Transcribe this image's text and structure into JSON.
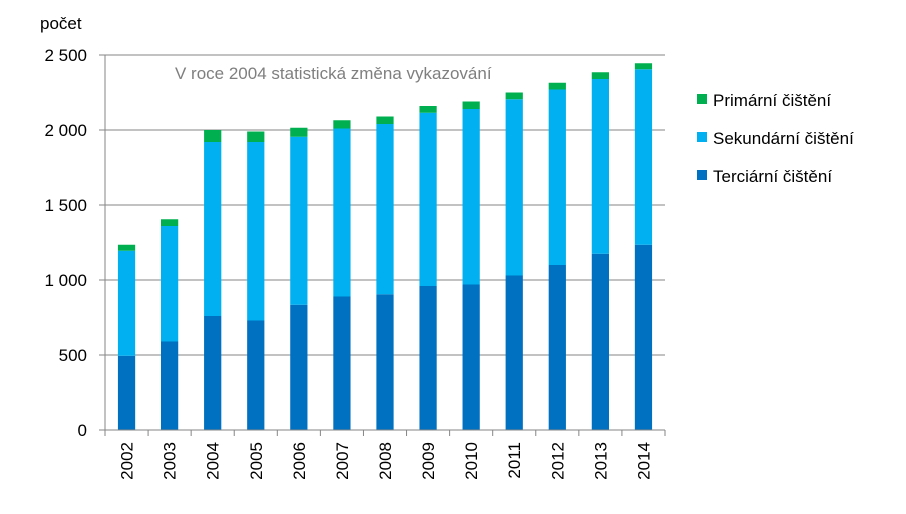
{
  "chart_data": {
    "type": "bar",
    "stacked": true,
    "title": "",
    "ylabel": "počet",
    "xlabel": "",
    "annotation": "V roce 2004 statistická změna vykazování",
    "categories": [
      "2002",
      "2003",
      "2004",
      "2005",
      "2006",
      "2007",
      "2008",
      "2009",
      "2010",
      "2011",
      "2012",
      "2013",
      "2014"
    ],
    "ylim": [
      0,
      2500
    ],
    "yticks": [
      0,
      500,
      1000,
      1500,
      2000,
      2500
    ],
    "ytick_labels": [
      "0",
      "500",
      "1 000",
      "1 500",
      "2 000",
      "2 500"
    ],
    "grid": true,
    "legend_position": "right",
    "series": [
      {
        "name": "Terciární čištění",
        "color": "#0070c0",
        "values": [
          495,
          590,
          760,
          730,
          835,
          890,
          905,
          960,
          970,
          1030,
          1100,
          1175,
          1235
        ]
      },
      {
        "name": "Sekundární čištění",
        "color": "#00b0f0",
        "values": [
          700,
          770,
          1160,
          1190,
          1120,
          1120,
          1135,
          1155,
          1170,
          1175,
          1170,
          1165,
          1170
        ]
      },
      {
        "name": "Primární čištění",
        "color": "#00b050",
        "values": [
          40,
          45,
          80,
          70,
          60,
          55,
          50,
          45,
          50,
          45,
          45,
          45,
          40
        ]
      }
    ],
    "legend_order": [
      "Primární čištění",
      "Sekundární čištění",
      "Terciární čištění"
    ]
  }
}
